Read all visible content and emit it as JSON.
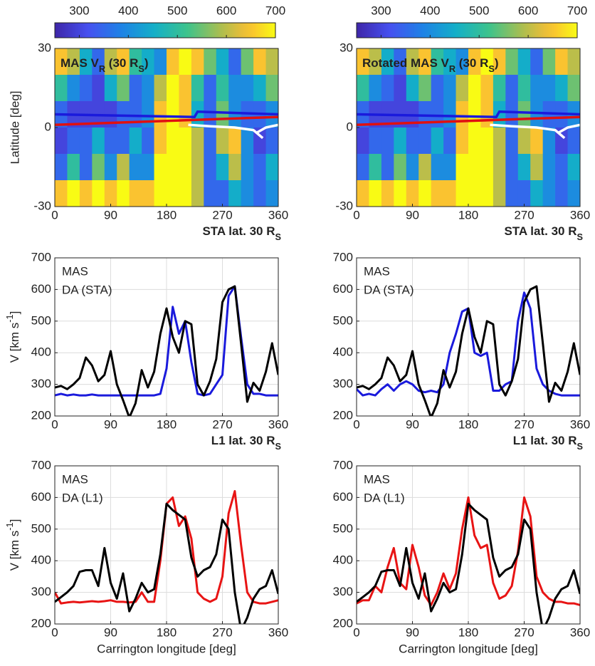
{
  "chart_data": [
    {
      "type": "heatmap",
      "title_parts": [
        "MAS V",
        "R",
        " (30 R",
        "S",
        ")"
      ],
      "note_parts": [
        "STA lat. 30 R",
        "S"
      ],
      "ylabel": "Latitude [deg]",
      "x": [
        10,
        30,
        50,
        70,
        90,
        110,
        130,
        150,
        170,
        190,
        210,
        230,
        250,
        270,
        290,
        310,
        330,
        350
      ],
      "y": [
        25,
        15,
        5,
        -5,
        -15,
        -25
      ],
      "z": [
        [
          650,
          600,
          450,
          350,
          600,
          650,
          500,
          450,
          400,
          650,
          700,
          650,
          550,
          450,
          350,
          550,
          650,
          600
        ],
        [
          500,
          400,
          350,
          300,
          450,
          550,
          350,
          400,
          600,
          700,
          650,
          500,
          350,
          500,
          400,
          400,
          450,
          550
        ],
        [
          350,
          300,
          300,
          300,
          300,
          350,
          350,
          400,
          650,
          700,
          650,
          450,
          350,
          550,
          400,
          350,
          350,
          400
        ],
        [
          300,
          350,
          350,
          450,
          350,
          350,
          450,
          350,
          650,
          700,
          700,
          600,
          350,
          600,
          650,
          400,
          300,
          350
        ],
        [
          350,
          500,
          350,
          550,
          400,
          600,
          400,
          400,
          700,
          700,
          700,
          600,
          350,
          450,
          600,
          400,
          350,
          450
        ],
        [
          650,
          700,
          650,
          700,
          650,
          700,
          650,
          650,
          700,
          700,
          700,
          600,
          350,
          350,
          450,
          400,
          350,
          400
        ]
      ],
      "clim": [
        250,
        700
      ],
      "cticks": [
        300,
        400,
        500,
        600,
        700
      ],
      "xlim": [
        0,
        360
      ],
      "xticks": [
        0,
        90,
        180,
        270,
        360
      ],
      "ylim": [
        -30,
        30
      ],
      "yticks": [
        -30,
        0,
        30
      ],
      "series": [
        {
          "color": "#1a1adc",
          "x": [
            0,
            225,
            230,
            360
          ],
          "y": [
            5,
            4,
            6,
            5
          ]
        },
        {
          "color": "#e01010",
          "x": [
            0,
            360
          ],
          "y": [
            1,
            4
          ]
        },
        {
          "color": "#ffffff",
          "x": [
            215,
            250,
            290,
            320,
            330,
            335,
            325,
            340,
            360
          ],
          "y": [
            1,
            0.5,
            0,
            -1,
            -3,
            -4,
            -2,
            0,
            1
          ]
        }
      ]
    },
    {
      "type": "heatmap",
      "title_parts": [
        "Rotated MAS V",
        "R",
        " (30 R",
        "S",
        ")"
      ],
      "note_parts": [
        "STA lat. 30 R",
        "S"
      ],
      "x": [
        10,
        30,
        50,
        70,
        90,
        110,
        130,
        150,
        170,
        190,
        210,
        230,
        250,
        270,
        290,
        310,
        330,
        350
      ],
      "y": [
        25,
        15,
        5,
        -5,
        -15,
        -25
      ],
      "z": [
        [
          650,
          600,
          450,
          350,
          600,
          650,
          500,
          450,
          400,
          650,
          700,
          650,
          550,
          450,
          350,
          550,
          650,
          600
        ],
        [
          500,
          400,
          350,
          300,
          450,
          550,
          350,
          400,
          600,
          700,
          650,
          500,
          350,
          500,
          400,
          400,
          450,
          550
        ],
        [
          350,
          300,
          300,
          300,
          300,
          350,
          350,
          400,
          650,
          700,
          650,
          450,
          350,
          550,
          400,
          350,
          350,
          400
        ],
        [
          300,
          350,
          350,
          450,
          350,
          350,
          450,
          350,
          650,
          700,
          700,
          600,
          350,
          600,
          650,
          400,
          300,
          350
        ],
        [
          350,
          500,
          350,
          550,
          400,
          600,
          400,
          400,
          700,
          700,
          700,
          600,
          350,
          450,
          600,
          400,
          350,
          450
        ],
        [
          650,
          700,
          650,
          700,
          650,
          700,
          650,
          650,
          700,
          700,
          700,
          600,
          350,
          350,
          450,
          400,
          350,
          400
        ]
      ],
      "clim": [
        250,
        700
      ],
      "cticks": [
        300,
        400,
        500,
        600,
        700
      ],
      "xlim": [
        0,
        360
      ],
      "xticks": [
        0,
        90,
        180,
        270,
        360
      ],
      "ylim": [
        -30,
        30
      ],
      "yticks": [
        -30,
        0,
        30
      ],
      "series": [
        {
          "color": "#1a1adc",
          "x": [
            0,
            225,
            230,
            360
          ],
          "y": [
            5,
            4,
            6,
            5
          ]
        },
        {
          "color": "#e01010",
          "x": [
            0,
            360
          ],
          "y": [
            1,
            4
          ]
        },
        {
          "color": "#ffffff",
          "x": [
            215,
            250,
            290,
            320,
            330,
            335,
            325,
            340,
            360
          ],
          "y": [
            1,
            0.5,
            0,
            -1,
            -3,
            -4,
            -2,
            0,
            1
          ]
        }
      ]
    },
    {
      "type": "line",
      "ylabel_parts": [
        "V [km s",
        "-1",
        "]"
      ],
      "note_parts": [
        "L1 lat. 30 R",
        "S"
      ],
      "grid": true,
      "xlim": [
        0,
        360
      ],
      "xticks": [
        0,
        90,
        180,
        270,
        360
      ],
      "ylim": [
        200,
        700
      ],
      "yticks": [
        200,
        300,
        400,
        500,
        600,
        700
      ],
      "x": [
        0,
        10,
        20,
        30,
        40,
        50,
        60,
        70,
        80,
        90,
        100,
        110,
        120,
        130,
        140,
        150,
        160,
        170,
        180,
        190,
        200,
        210,
        220,
        230,
        240,
        250,
        260,
        270,
        280,
        290,
        300,
        310,
        320,
        330,
        340,
        350,
        360
      ],
      "series": [
        {
          "name": "MAS",
          "color": "#1a1adc",
          "values": [
            265,
            270,
            265,
            268,
            265,
            265,
            268,
            265,
            265,
            265,
            265,
            265,
            265,
            265,
            265,
            265,
            265,
            270,
            350,
            545,
            460,
            500,
            370,
            270,
            265,
            270,
            300,
            330,
            580,
            610,
            450,
            300,
            270,
            270,
            265,
            265,
            265
          ]
        },
        {
          "name": "DA (STA)",
          "color": "#000000",
          "values": [
            290,
            295,
            285,
            300,
            320,
            385,
            360,
            310,
            330,
            405,
            300,
            250,
            195,
            240,
            345,
            290,
            340,
            460,
            540,
            450,
            400,
            500,
            490,
            300,
            265,
            310,
            380,
            560,
            600,
            610,
            430,
            245,
            305,
            280,
            340,
            430,
            330
          ]
        }
      ]
    },
    {
      "type": "line",
      "note_parts": [
        "L1 lat. 30 R",
        "S"
      ],
      "grid": true,
      "xlim": [
        0,
        360
      ],
      "xticks": [
        0,
        90,
        180,
        270,
        360
      ],
      "ylim": [
        200,
        700
      ],
      "yticks": [
        200,
        300,
        400,
        500,
        600,
        700
      ],
      "x": [
        0,
        10,
        20,
        30,
        40,
        50,
        60,
        70,
        80,
        90,
        100,
        110,
        120,
        130,
        140,
        150,
        160,
        170,
        180,
        190,
        200,
        210,
        220,
        230,
        240,
        250,
        260,
        270,
        280,
        290,
        300,
        310,
        320,
        330,
        340,
        350,
        360
      ],
      "series": [
        {
          "name": "MAS",
          "color": "#1a1adc",
          "values": [
            285,
            265,
            270,
            265,
            285,
            300,
            280,
            300,
            310,
            300,
            280,
            275,
            280,
            275,
            300,
            400,
            460,
            530,
            540,
            400,
            390,
            400,
            280,
            280,
            300,
            310,
            500,
            590,
            540,
            350,
            300,
            280,
            270,
            265,
            265,
            265,
            265
          ]
        },
        {
          "name": "DA (STA)",
          "color": "#000000",
          "values": [
            290,
            295,
            285,
            300,
            320,
            385,
            360,
            310,
            330,
            405,
            300,
            250,
            195,
            240,
            345,
            290,
            340,
            460,
            540,
            450,
            400,
            500,
            490,
            300,
            265,
            310,
            380,
            560,
            600,
            610,
            430,
            245,
            305,
            280,
            340,
            430,
            330
          ]
        }
      ]
    },
    {
      "type": "line",
      "ylabel_parts": [
        "V [km s",
        "-1",
        "]"
      ],
      "xlabel": "Carrington longitude [deg]",
      "grid": true,
      "xlim": [
        0,
        360
      ],
      "xticks": [
        0,
        90,
        180,
        270,
        360
      ],
      "ylim": [
        200,
        700
      ],
      "yticks": [
        200,
        300,
        400,
        500,
        600,
        700
      ],
      "x": [
        0,
        10,
        20,
        30,
        40,
        50,
        60,
        70,
        80,
        90,
        100,
        110,
        120,
        130,
        140,
        150,
        160,
        170,
        180,
        190,
        200,
        210,
        220,
        230,
        240,
        250,
        260,
        270,
        280,
        290,
        300,
        310,
        320,
        330,
        340,
        350,
        360
      ],
      "series": [
        {
          "name": "MAS",
          "color": "#e81414",
          "values": [
            300,
            265,
            268,
            270,
            268,
            270,
            272,
            270,
            272,
            275,
            270,
            270,
            268,
            270,
            300,
            270,
            270,
            400,
            580,
            600,
            510,
            540,
            470,
            300,
            280,
            270,
            280,
            350,
            550,
            620,
            450,
            300,
            270,
            265,
            265,
            270,
            275
          ]
        },
        {
          "name": "DA (L1)",
          "color": "#000000",
          "values": [
            270,
            285,
            300,
            320,
            365,
            370,
            370,
            320,
            440,
            330,
            280,
            360,
            240,
            280,
            330,
            300,
            310,
            420,
            580,
            560,
            545,
            530,
            410,
            350,
            370,
            380,
            420,
            530,
            500,
            300,
            180,
            220,
            280,
            310,
            320,
            370,
            295
          ]
        }
      ]
    },
    {
      "type": "line",
      "xlabel": "Carrington longitude [deg]",
      "grid": true,
      "xlim": [
        0,
        360
      ],
      "xticks": [
        0,
        90,
        180,
        270,
        360
      ],
      "ylim": [
        200,
        700
      ],
      "yticks": [
        200,
        300,
        400,
        500,
        600,
        700
      ],
      "x": [
        0,
        10,
        20,
        30,
        40,
        50,
        60,
        70,
        80,
        90,
        100,
        110,
        120,
        130,
        140,
        150,
        160,
        170,
        180,
        190,
        200,
        210,
        220,
        230,
        240,
        250,
        260,
        270,
        280,
        290,
        300,
        310,
        320,
        330,
        340,
        350,
        360
      ],
      "series": [
        {
          "name": "MAS",
          "color": "#e81414",
          "values": [
            265,
            275,
            275,
            320,
            300,
            380,
            440,
            330,
            310,
            450,
            380,
            290,
            260,
            300,
            360,
            310,
            360,
            500,
            600,
            480,
            440,
            450,
            330,
            280,
            290,
            320,
            430,
            600,
            540,
            350,
            300,
            280,
            270,
            270,
            265,
            265,
            260
          ]
        },
        {
          "name": "DA (L1)",
          "color": "#000000",
          "values": [
            270,
            285,
            300,
            320,
            365,
            370,
            370,
            320,
            440,
            330,
            280,
            360,
            240,
            280,
            330,
            300,
            310,
            420,
            580,
            560,
            545,
            530,
            410,
            350,
            370,
            380,
            420,
            530,
            500,
            300,
            180,
            220,
            280,
            310,
            320,
            370,
            295
          ]
        }
      ]
    }
  ]
}
